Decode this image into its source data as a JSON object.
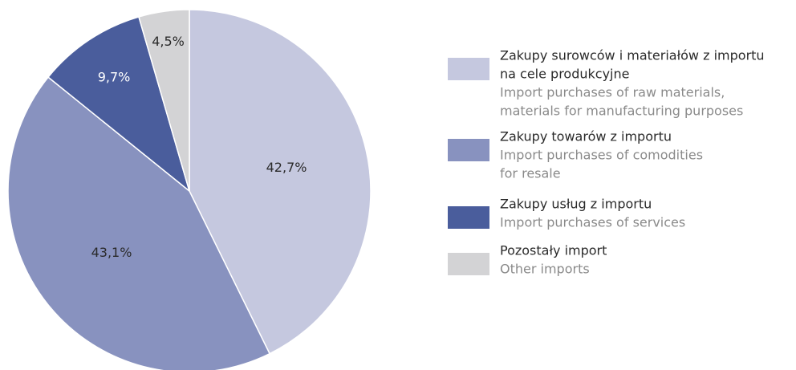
{
  "chart_data": {
    "type": "pie",
    "categories": [
      [
        "Zakupy surowców i materiałów z importu",
        "na cele produkcyjne"
      ],
      [
        "Zakupy towarów z importu"
      ],
      [
        "Zakupy usług z importu"
      ],
      [
        "Pozostały import"
      ]
    ],
    "categories_en": [
      [
        "Import purchases of raw materials,",
        "materials for manufacturing purposes"
      ],
      [
        "Import purchases of comodities",
        "for resale"
      ],
      [
        "Import purchases of services"
      ],
      [
        "Other imports"
      ]
    ],
    "values": [
      42.7,
      43.1,
      9.7,
      4.5
    ],
    "value_labels": [
      "42,7%",
      "43,1%",
      "9,7%",
      "4,5%"
    ],
    "colors": [
      "#c5c8df",
      "#8892bf",
      "#4a5d9c",
      "#d3d3d5"
    ]
  }
}
